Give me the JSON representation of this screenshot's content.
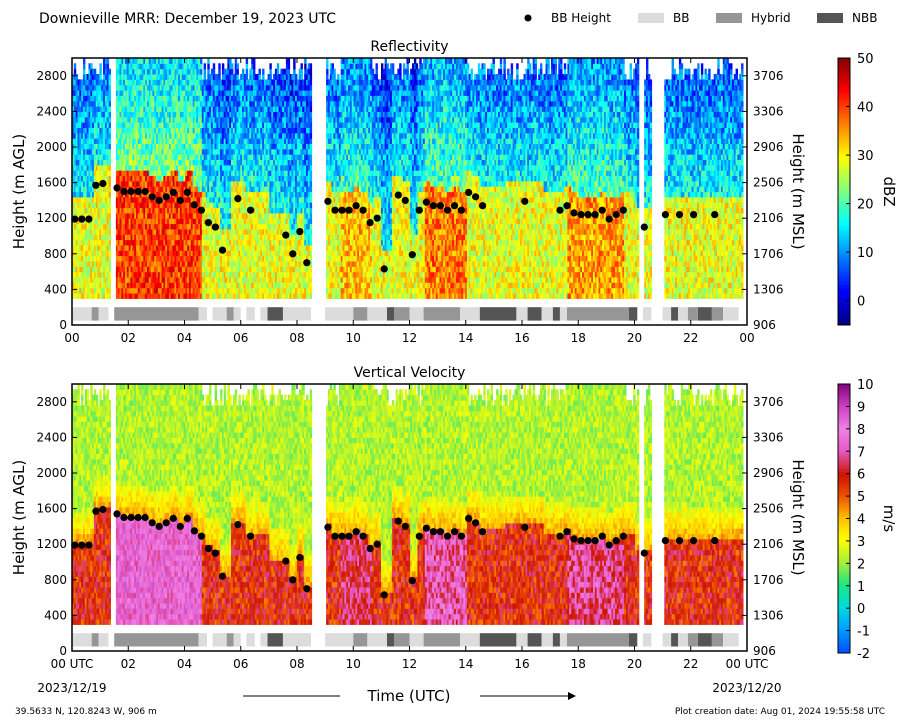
{
  "header": {
    "title": "Downieville MRR:  December 19, 2023 UTC",
    "legend": [
      {
        "label": "BB Height",
        "kind": "dot",
        "color": "#000000"
      },
      {
        "label": "BB",
        "kind": "box",
        "color": "#dcdcdc"
      },
      {
        "label": "Hybrid",
        "kind": "box",
        "color": "#969696"
      },
      {
        "label": "NBB",
        "kind": "box",
        "color": "#555555"
      }
    ]
  },
  "footer": {
    "location": "39.5633 N, 120.8243 W, 906 m",
    "created": "Plot creation date: Aug 01, 2024 19:55:58 UTC",
    "xlabel": "Time (UTC)",
    "start_date": "2023/12/19",
    "end_date": "2023/12/20"
  },
  "chart_data": [
    {
      "type": "heatmap",
      "title": "Reflectivity",
      "ylabel": "Height (m AGL)",
      "y2label": "Height (m MSL)",
      "colorbar": {
        "label": "dBZ",
        "min": -5,
        "max": 50,
        "ticks": [
          0,
          10,
          20,
          30,
          40,
          50
        ],
        "cmap": "jet"
      },
      "xlim": [
        0,
        24
      ],
      "ylim": [
        0,
        3000
      ],
      "xticks": [
        "00",
        "02",
        "04",
        "06",
        "08",
        "10",
        "12",
        "14",
        "16",
        "18",
        "20",
        "22",
        "00"
      ],
      "yticks": [
        0,
        400,
        800,
        1200,
        1600,
        2000,
        2400,
        2800
      ],
      "y2ticks": [
        906,
        1306,
        1706,
        2106,
        2506,
        2906,
        3306,
        3706
      ]
    },
    {
      "type": "heatmap",
      "title": "Vertical Velocity",
      "ylabel": "Height (m AGL)",
      "y2label": "Height (m MSL)",
      "colorbar": {
        "label": "m/s",
        "min": -2,
        "max": 10,
        "ticks": [
          -2,
          -1,
          0,
          1,
          2,
          3,
          4,
          5,
          6,
          7,
          8,
          9,
          10
        ],
        "cmap": "velocity"
      },
      "xlim": [
        0,
        24
      ],
      "ylim": [
        0,
        3000
      ],
      "xticks": [
        "00 UTC",
        "02",
        "04",
        "06",
        "08",
        "10",
        "12",
        "14",
        "16",
        "18",
        "20",
        "22",
        "00 UTC"
      ],
      "yticks": [
        0,
        400,
        800,
        1200,
        1600,
        2000,
        2400,
        2800
      ],
      "y2ticks": [
        906,
        1306,
        1706,
        2106,
        2506,
        2906,
        3306,
        3706
      ]
    }
  ],
  "bb_height": [
    {
      "t": 0.1,
      "h": 1190
    },
    {
      "t": 0.35,
      "h": 1190
    },
    {
      "t": 0.6,
      "h": 1190
    },
    {
      "t": 0.85,
      "h": 1570
    },
    {
      "t": 1.1,
      "h": 1590
    },
    {
      "t": 1.6,
      "h": 1540
    },
    {
      "t": 1.85,
      "h": 1500
    },
    {
      "t": 2.1,
      "h": 1500
    },
    {
      "t": 2.35,
      "h": 1500
    },
    {
      "t": 2.6,
      "h": 1500
    },
    {
      "t": 2.85,
      "h": 1440
    },
    {
      "t": 3.1,
      "h": 1400
    },
    {
      "t": 3.35,
      "h": 1440
    },
    {
      "t": 3.6,
      "h": 1490
    },
    {
      "t": 3.85,
      "h": 1400
    },
    {
      "t": 4.1,
      "h": 1490
    },
    {
      "t": 4.35,
      "h": 1350
    },
    {
      "t": 4.6,
      "h": 1290
    },
    {
      "t": 4.85,
      "h": 1150
    },
    {
      "t": 5.1,
      "h": 1100
    },
    {
      "t": 5.35,
      "h": 840
    },
    {
      "t": 5.9,
      "h": 1420
    },
    {
      "t": 6.35,
      "h": 1290
    },
    {
      "t": 7.6,
      "h": 1010
    },
    {
      "t": 7.85,
      "h": 800
    },
    {
      "t": 8.1,
      "h": 1050
    },
    {
      "t": 8.35,
      "h": 700
    },
    {
      "t": 9.1,
      "h": 1390
    },
    {
      "t": 9.35,
      "h": 1290
    },
    {
      "t": 9.6,
      "h": 1290
    },
    {
      "t": 9.85,
      "h": 1290
    },
    {
      "t": 10.1,
      "h": 1340
    },
    {
      "t": 10.35,
      "h": 1290
    },
    {
      "t": 10.6,
      "h": 1150
    },
    {
      "t": 10.85,
      "h": 1200
    },
    {
      "t": 11.1,
      "h": 630
    },
    {
      "t": 11.6,
      "h": 1460
    },
    {
      "t": 11.85,
      "h": 1400
    },
    {
      "t": 12.1,
      "h": 790
    },
    {
      "t": 12.35,
      "h": 1290
    },
    {
      "t": 12.6,
      "h": 1380
    },
    {
      "t": 12.85,
      "h": 1340
    },
    {
      "t": 13.1,
      "h": 1340
    },
    {
      "t": 13.35,
      "h": 1290
    },
    {
      "t": 13.6,
      "h": 1340
    },
    {
      "t": 13.85,
      "h": 1290
    },
    {
      "t": 14.1,
      "h": 1490
    },
    {
      "t": 14.35,
      "h": 1440
    },
    {
      "t": 14.6,
      "h": 1340
    },
    {
      "t": 16.1,
      "h": 1390
    },
    {
      "t": 17.35,
      "h": 1290
    },
    {
      "t": 17.6,
      "h": 1340
    },
    {
      "t": 17.85,
      "h": 1260
    },
    {
      "t": 18.1,
      "h": 1240
    },
    {
      "t": 18.35,
      "h": 1240
    },
    {
      "t": 18.6,
      "h": 1240
    },
    {
      "t": 18.85,
      "h": 1290
    },
    {
      "t": 19.1,
      "h": 1190
    },
    {
      "t": 19.35,
      "h": 1240
    },
    {
      "t": 19.6,
      "h": 1290
    },
    {
      "t": 20.35,
      "h": 1100
    },
    {
      "t": 21.1,
      "h": 1240
    },
    {
      "t": 21.6,
      "h": 1240
    },
    {
      "t": 22.1,
      "h": 1240
    },
    {
      "t": 22.85,
      "h": 1240
    }
  ],
  "bb_type": [
    {
      "start": 0.0,
      "end": 0.7,
      "type": "BB"
    },
    {
      "start": 0.7,
      "end": 0.95,
      "type": "Hybrid"
    },
    {
      "start": 0.95,
      "end": 1.3,
      "type": "BB"
    },
    {
      "start": 1.5,
      "end": 4.5,
      "type": "Hybrid"
    },
    {
      "start": 4.5,
      "end": 4.8,
      "type": "BB"
    },
    {
      "start": 5.0,
      "end": 5.5,
      "type": "BB"
    },
    {
      "start": 5.5,
      "end": 5.75,
      "type": "Hybrid"
    },
    {
      "start": 5.75,
      "end": 6.0,
      "type": "BB"
    },
    {
      "start": 6.2,
      "end": 6.5,
      "type": "BB"
    },
    {
      "start": 6.7,
      "end": 6.95,
      "type": "BB"
    },
    {
      "start": 6.95,
      "end": 7.5,
      "type": "NBB"
    },
    {
      "start": 7.5,
      "end": 8.5,
      "type": "BB"
    },
    {
      "start": 9.0,
      "end": 10.0,
      "type": "BB"
    },
    {
      "start": 10.0,
      "end": 10.5,
      "type": "Hybrid"
    },
    {
      "start": 10.5,
      "end": 11.2,
      "type": "BB"
    },
    {
      "start": 11.2,
      "end": 11.45,
      "type": "NBB"
    },
    {
      "start": 11.45,
      "end": 12.0,
      "type": "Hybrid"
    },
    {
      "start": 12.0,
      "end": 12.5,
      "type": "BB"
    },
    {
      "start": 12.5,
      "end": 13.8,
      "type": "Hybrid"
    },
    {
      "start": 13.8,
      "end": 14.5,
      "type": "BB"
    },
    {
      "start": 14.5,
      "end": 15.8,
      "type": "NBB"
    },
    {
      "start": 15.8,
      "end": 16.2,
      "type": "BB"
    },
    {
      "start": 16.2,
      "end": 16.7,
      "type": "NBB"
    },
    {
      "start": 16.7,
      "end": 17.1,
      "type": "BB"
    },
    {
      "start": 17.1,
      "end": 17.35,
      "type": "NBB"
    },
    {
      "start": 17.35,
      "end": 17.6,
      "type": "BB"
    },
    {
      "start": 17.6,
      "end": 19.8,
      "type": "Hybrid"
    },
    {
      "start": 19.8,
      "end": 20.1,
      "type": "NBB"
    },
    {
      "start": 20.3,
      "end": 20.6,
      "type": "BB"
    },
    {
      "start": 21.0,
      "end": 21.3,
      "type": "BB"
    },
    {
      "start": 21.3,
      "end": 21.55,
      "type": "NBB"
    },
    {
      "start": 21.55,
      "end": 21.9,
      "type": "BB"
    },
    {
      "start": 21.9,
      "end": 22.25,
      "type": "Hybrid"
    },
    {
      "start": 22.25,
      "end": 22.75,
      "type": "NBB"
    },
    {
      "start": 22.75,
      "end": 23.15,
      "type": "Hybrid"
    },
    {
      "start": 23.15,
      "end": 23.7,
      "type": "BB"
    }
  ],
  "gaps": [
    [
      1.3,
      1.5
    ],
    [
      8.5,
      9.0
    ],
    [
      20.1,
      20.3
    ],
    [
      20.6,
      21.0
    ]
  ],
  "colors": {
    "BB": "#dcdcdc",
    "Hybrid": "#969696",
    "NBB": "#555555",
    "dot": "#000000"
  }
}
